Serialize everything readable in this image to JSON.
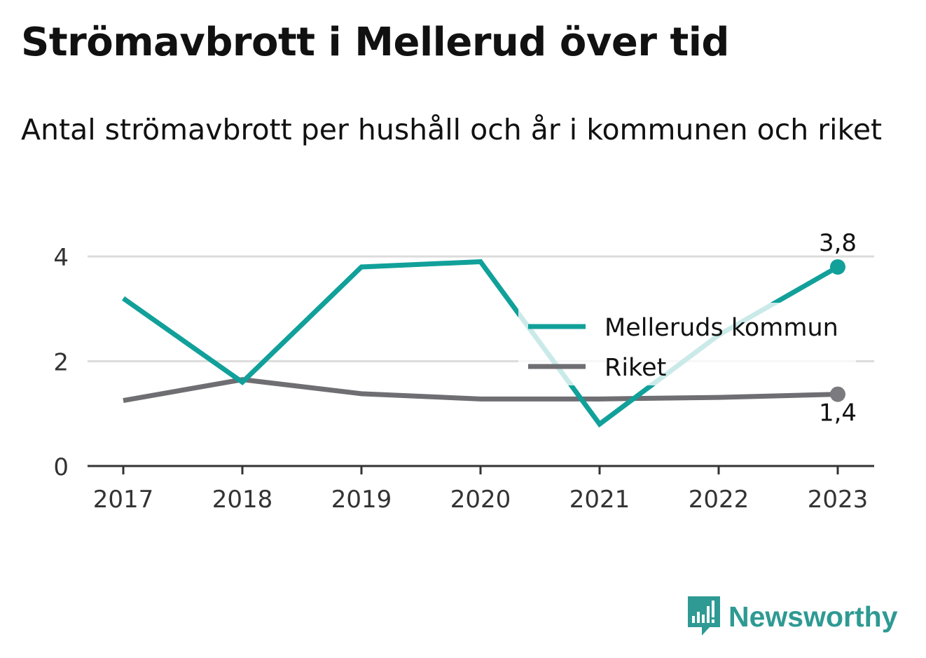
{
  "header": {
    "title": "Strömavbrott i Mellerud över tid",
    "subtitle": "Antal strömavbrott per hushåll och år i kommunen och riket"
  },
  "chart_data": {
    "type": "line",
    "title": "Strömavbrott i Mellerud över tid",
    "subtitle": "Antal strömavbrott per hushåll och år i kommunen och riket",
    "xlabel": "",
    "ylabel": "",
    "x": [
      "2017",
      "2018",
      "2019",
      "2020",
      "2021",
      "2022",
      "2023"
    ],
    "ylim": [
      0,
      4
    ],
    "yticks": [
      "0",
      "2",
      "4"
    ],
    "grid": true,
    "legend_position": "right",
    "series": [
      {
        "name": "Melleruds kommun",
        "color": "#11A09A",
        "values": [
          3.2,
          1.6,
          3.8,
          3.9,
          0.8,
          2.5,
          3.8
        ],
        "end_label": "3,8"
      },
      {
        "name": "Riket",
        "color": "#6E6E73",
        "values": [
          1.25,
          1.65,
          1.38,
          1.28,
          1.28,
          1.31,
          1.37
        ],
        "end_label": "1,4"
      }
    ]
  },
  "brand": {
    "name": "Newsworthy",
    "icon": "bar-chart-speech-bubble-icon",
    "color": "#2E9A93"
  },
  "colors": {
    "grid": "#DCDCDC",
    "axis": "#333333",
    "tick_text": "#333333"
  }
}
